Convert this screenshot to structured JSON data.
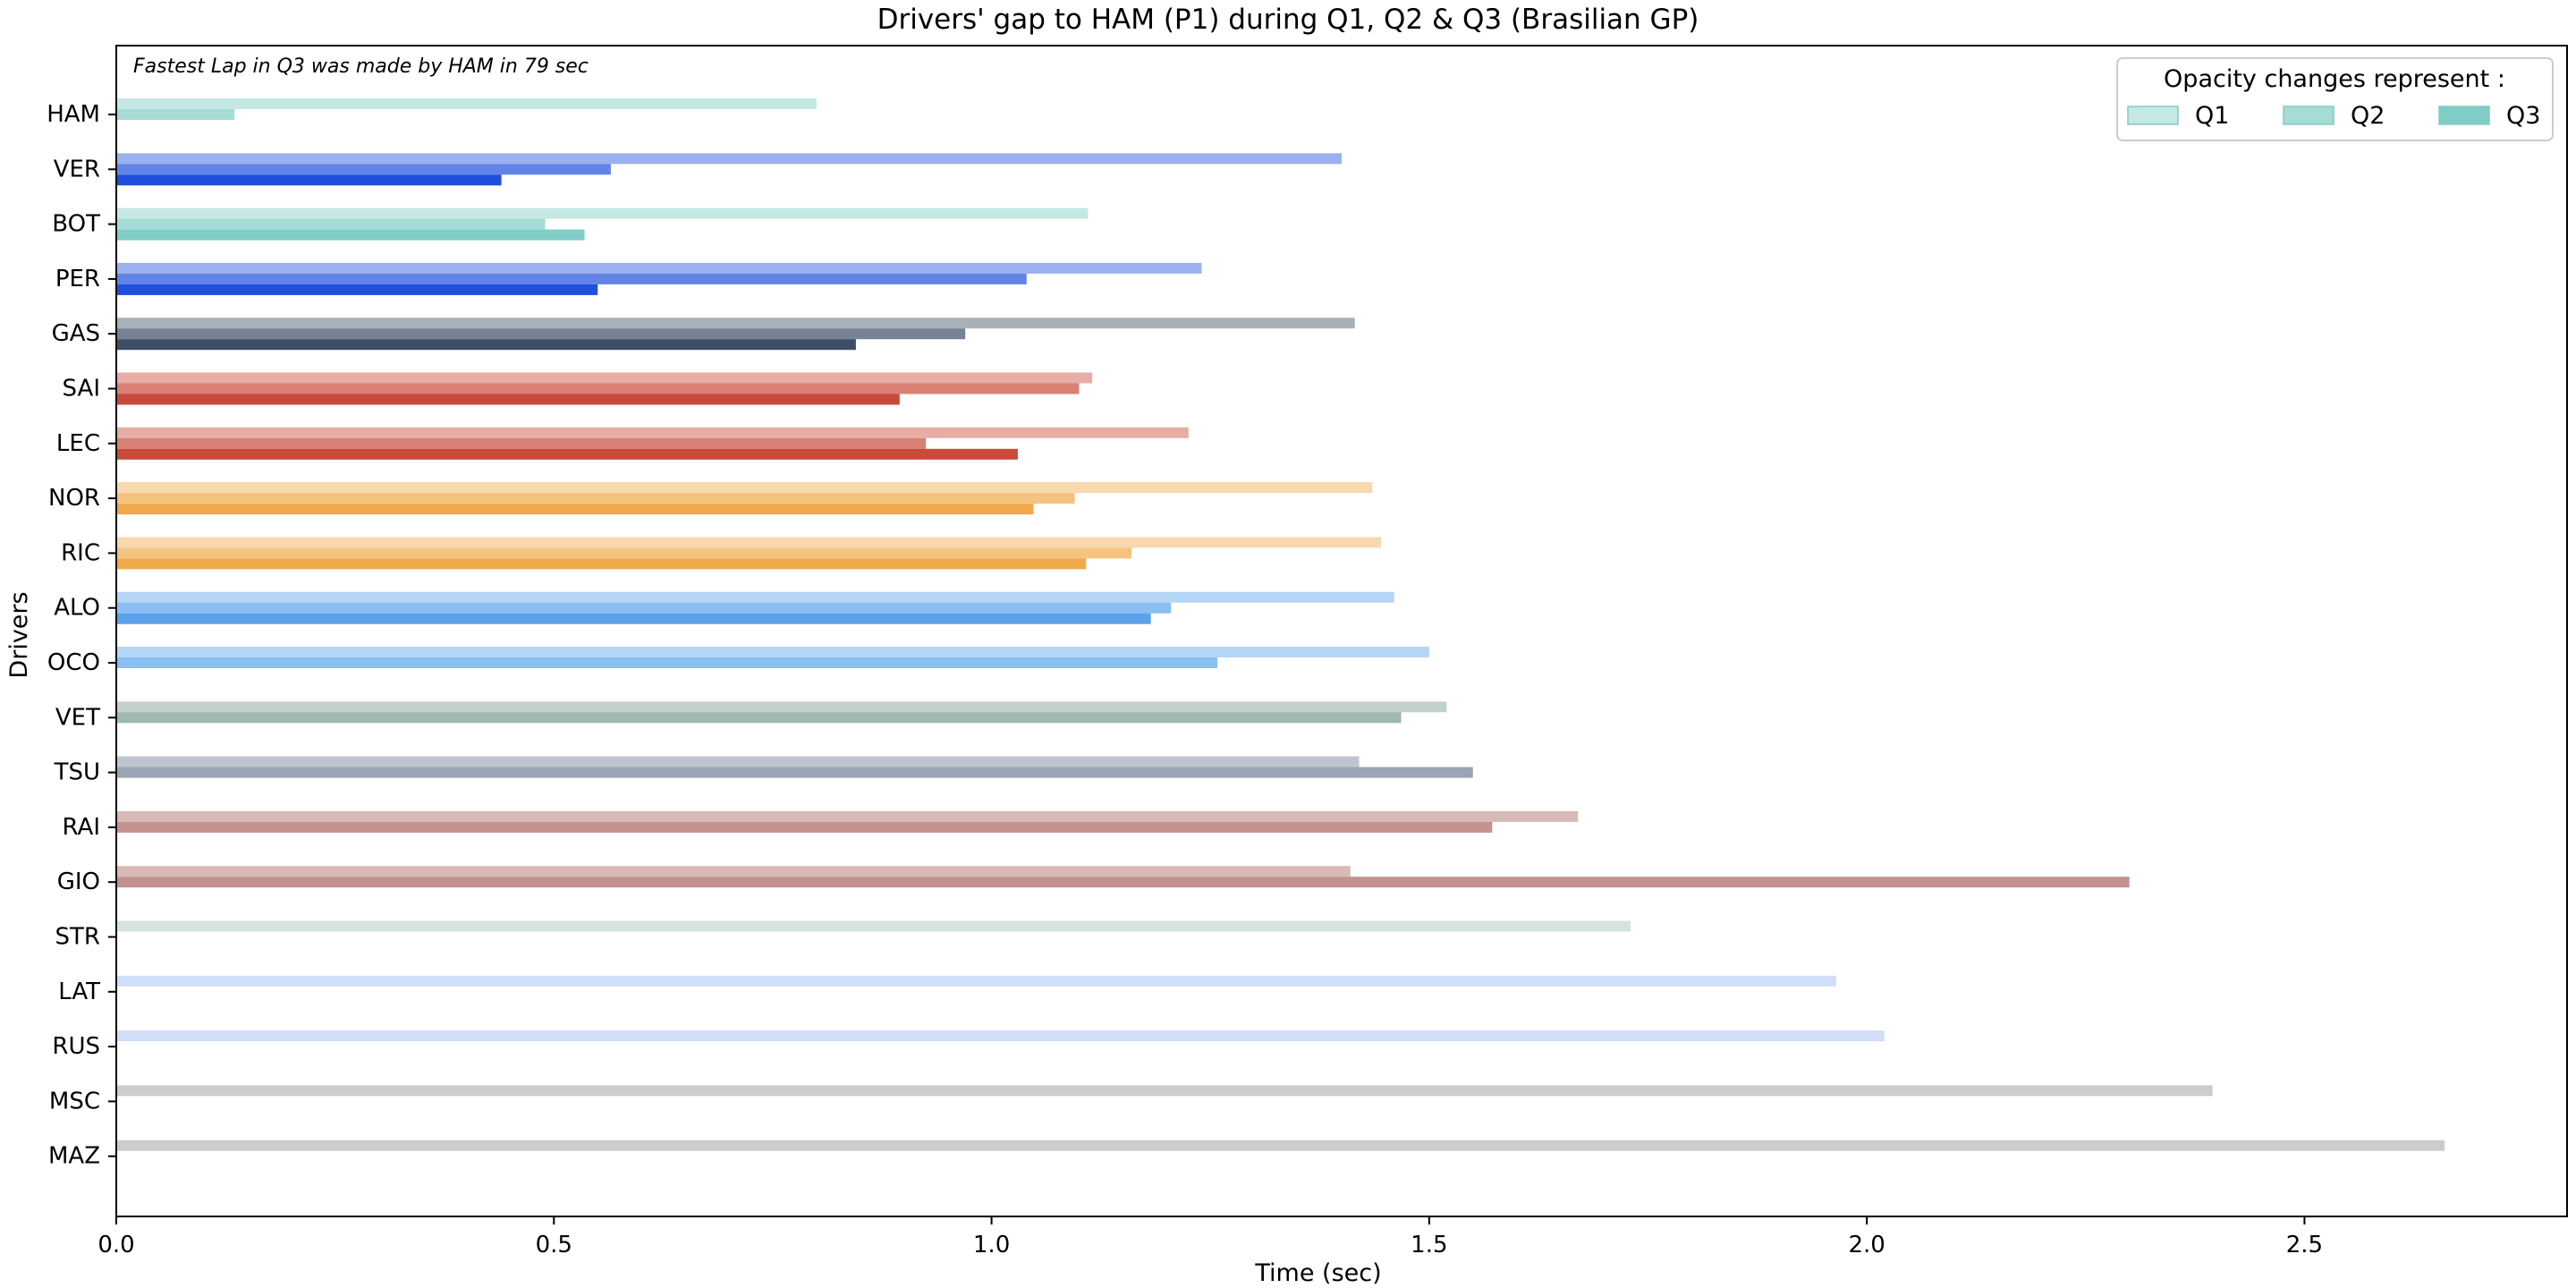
{
  "chart_data": {
    "type": "bar",
    "orientation": "horizontal",
    "title": "Drivers' gap to HAM (P1) during Q1, Q2 & Q3 (Brasilian GP)",
    "annotation": "Fastest Lap in Q3 was made by HAM in 79 sec",
    "xlabel": "Time (sec)",
    "ylabel": "Drivers",
    "xlim": [
      0,
      2.8
    ],
    "x_ticks": [
      0.0,
      0.5,
      1.0,
      1.5,
      2.0,
      2.5
    ],
    "x_tick_labels": [
      "0.0",
      "0.5",
      "1.0",
      "1.5",
      "2.0",
      "2.5"
    ],
    "grid": false,
    "legend": {
      "title": "Opacity changes represent :",
      "position": "top-right",
      "entries": [
        "Q1",
        "Q2",
        "Q3"
      ],
      "color": "#7fcdc4",
      "opacities": [
        0.45,
        0.7,
        1.0
      ]
    },
    "categories": [
      "HAM",
      "VER",
      "BOT",
      "PER",
      "GAS",
      "SAI",
      "LEC",
      "NOR",
      "RIC",
      "ALO",
      "OCO",
      "VET",
      "TSU",
      "RAI",
      "GIO",
      "STR",
      "LAT",
      "RUS",
      "MSC",
      "MAZ"
    ],
    "driver_colors": {
      "HAM": "#7fcdc4",
      "VER": "#1f4fdc",
      "BOT": "#7fcdc4",
      "PER": "#1f4fdc",
      "GAS": "#3d4f66",
      "SAI": "#c94a3a",
      "LEC": "#c94a3a",
      "NOR": "#f0a94a",
      "RIC": "#f0a94a",
      "ALO": "#5aa2ec",
      "OCO": "#5aa2ec",
      "VET": "#789a92",
      "TSU": "#6f7f93",
      "RAI": "#a8645e",
      "GIO": "#a8645e",
      "STR": "#a3c0bb",
      "LAT": "#97b6ed",
      "RUS": "#97b6ed",
      "MSC": "#8f8f8f",
      "MAZ": "#8f8f8f"
    },
    "series": [
      {
        "name": "Q1",
        "values": [
          0.8,
          1.4,
          1.11,
          1.24,
          1.415,
          1.115,
          1.225,
          1.435,
          1.445,
          1.46,
          1.5,
          1.52,
          1.42,
          1.67,
          1.41,
          1.73,
          1.965,
          2.02,
          2.395,
          2.66
        ]
      },
      {
        "name": "Q2",
        "values": [
          0.135,
          0.565,
          0.49,
          1.04,
          0.97,
          1.1,
          0.925,
          1.095,
          1.16,
          1.205,
          1.258,
          1.468,
          1.55,
          1.572,
          2.3,
          null,
          null,
          null,
          null,
          null
        ]
      },
      {
        "name": "Q3",
        "values": [
          null,
          0.44,
          0.535,
          0.55,
          0.845,
          0.895,
          1.03,
          1.048,
          1.108,
          1.182,
          null,
          null,
          null,
          null,
          null,
          null,
          null,
          null,
          null,
          null
        ]
      }
    ]
  }
}
